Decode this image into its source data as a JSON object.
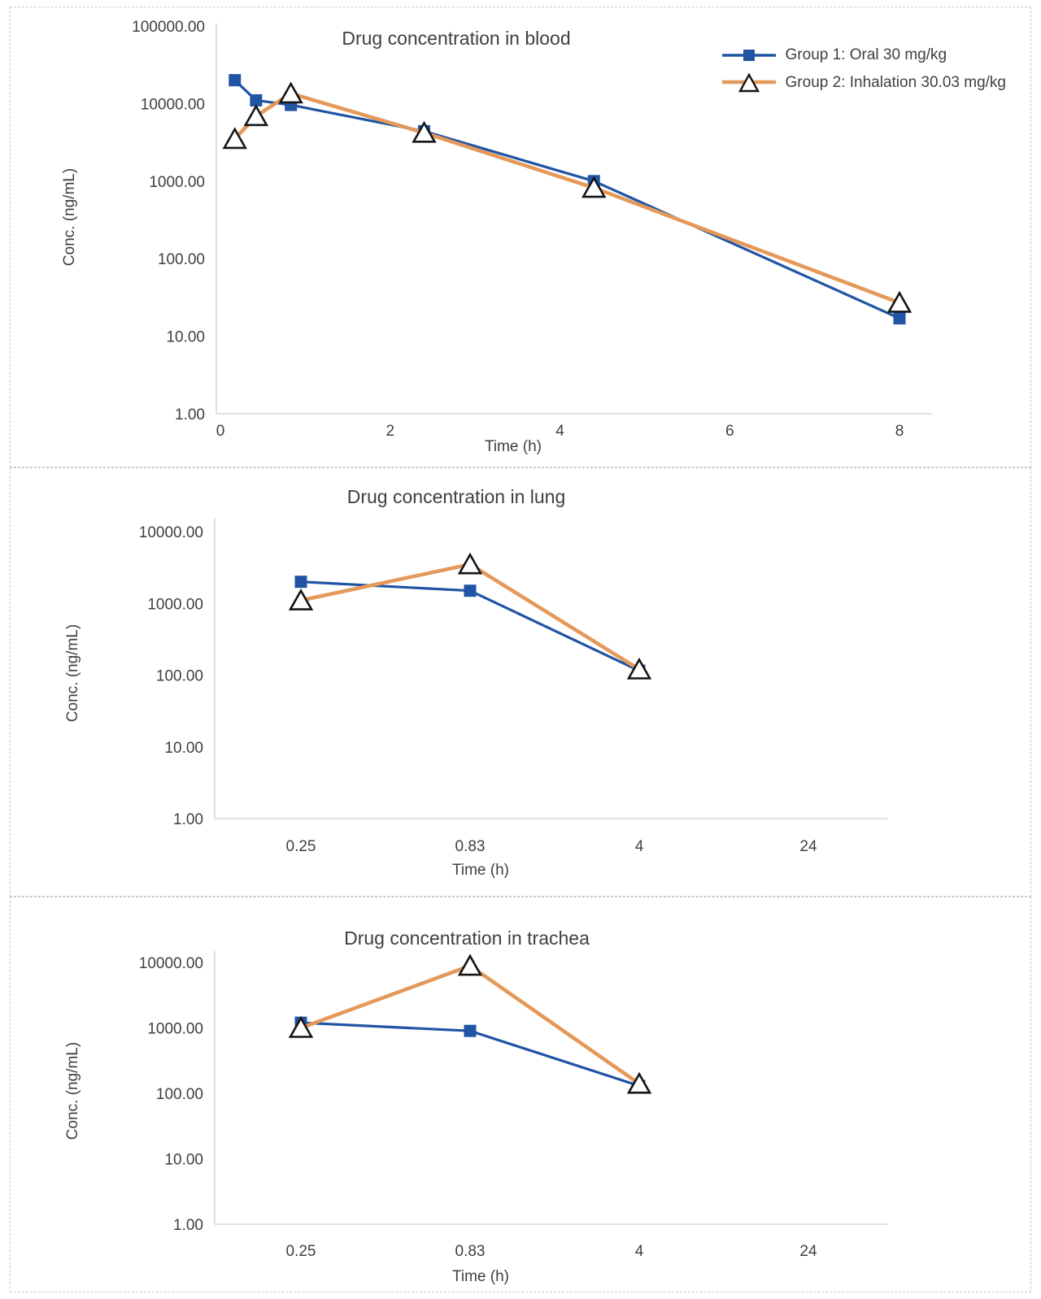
{
  "figure": {
    "background": "#ffffff",
    "panel_border_color": "#c9c9c9",
    "text_color": "#3f3f3f",
    "axis_line_color": "#d6d6d6"
  },
  "colors": {
    "group1_blue": "#2054a4",
    "group2_orange": "#e4995a",
    "marker_outline": "#151515",
    "marker_fill_open": "#ffffff"
  },
  "legend": {
    "position": "top-right-of-first-chart",
    "items": [
      {
        "label": "Group 1: Oral 30 mg/kg",
        "marker": "filled-square",
        "color": "#2054a4"
      },
      {
        "label": "Group 2: Inhalation 30.03 mg/kg",
        "marker": "open-triangle",
        "color": "#e4995a"
      }
    ]
  },
  "chart_data": [
    {
      "type": "line",
      "title": "Drug concentration in blood",
      "xlabel": "Time (h)",
      "ylabel": "Conc. (ng/mL)",
      "x_axis": {
        "kind": "numeric",
        "tick_labels": [
          "0",
          "2",
          "4",
          "6",
          "8"
        ],
        "tick_values": [
          0,
          2,
          4,
          6,
          8
        ],
        "range": [
          0,
          8.4
        ]
      },
      "y_axis": {
        "kind": "log",
        "min": 1,
        "max": 100000,
        "tick_labels": [
          "100000.00",
          "10000.00",
          "1000.00",
          "100.00",
          "10.00",
          "1.00"
        ]
      },
      "grid": false,
      "legend_visible": true,
      "series": [
        {
          "name": "Group 1: Oral 30 mg/kg",
          "marker": "square",
          "color_key": "group1_blue",
          "x": [
            0.17,
            0.42,
            0.83,
            2.4,
            4.4,
            8
          ],
          "y": [
            20000,
            11000,
            9600,
            4400,
            1000,
            17
          ]
        },
        {
          "name": "Group 2: Inhalation 30.03 mg/kg",
          "marker": "triangle",
          "color_key": "group2_orange",
          "x": [
            0.17,
            0.42,
            0.83,
            2.4,
            4.4,
            8
          ],
          "y": [
            3500,
            6900,
            13500,
            4200,
            820,
            27
          ]
        }
      ]
    },
    {
      "type": "line",
      "title": "Drug concentration in lung",
      "xlabel": "Time (h)",
      "ylabel": "Conc. (ng/mL)",
      "x_axis": {
        "kind": "category",
        "tick_labels": [
          "0.25",
          "0.83",
          "4",
          "24"
        ]
      },
      "y_axis": {
        "kind": "log",
        "min": 1,
        "max": 10000,
        "tick_labels": [
          "10000.00",
          "1000.00",
          "100.00",
          "10.00",
          "1.00"
        ]
      },
      "grid": false,
      "legend_visible": false,
      "series": [
        {
          "name": "Group 1: Oral 30 mg/kg",
          "marker": "square",
          "color_key": "group1_blue",
          "categories": [
            "0.25",
            "0.83",
            "4",
            "24"
          ],
          "values": [
            2000,
            1500,
            115,
            null
          ]
        },
        {
          "name": "Group 2: Inhalation 30.03 mg/kg",
          "marker": "triangle",
          "color_key": "group2_orange",
          "categories": [
            "0.25",
            "0.83",
            "4",
            "24"
          ],
          "values": [
            1100,
            3500,
            120,
            null
          ]
        }
      ]
    },
    {
      "type": "line",
      "title": "Drug concentration in trachea",
      "xlabel": "Time (h)",
      "ylabel": "Conc. (ng/mL)",
      "x_axis": {
        "kind": "category",
        "tick_labels": [
          "0.25",
          "0.83",
          "4",
          "24"
        ]
      },
      "y_axis": {
        "kind": "log",
        "min": 1,
        "max": 10000,
        "tick_labels": [
          "10000.00",
          "1000.00",
          "100.00",
          "10.00",
          "1.00"
        ]
      },
      "grid": false,
      "legend_visible": false,
      "series": [
        {
          "name": "Group 1: Oral 30 mg/kg",
          "marker": "square",
          "color_key": "group1_blue",
          "categories": [
            "0.25",
            "0.83",
            "4",
            "24"
          ],
          "values": [
            1200,
            900,
            130,
            null
          ]
        },
        {
          "name": "Group 2: Inhalation 30.03 mg/kg",
          "marker": "triangle",
          "color_key": "group2_orange",
          "categories": [
            "0.25",
            "0.83",
            "4",
            "24"
          ],
          "values": [
            1000,
            8900,
            140,
            null
          ]
        }
      ]
    }
  ]
}
